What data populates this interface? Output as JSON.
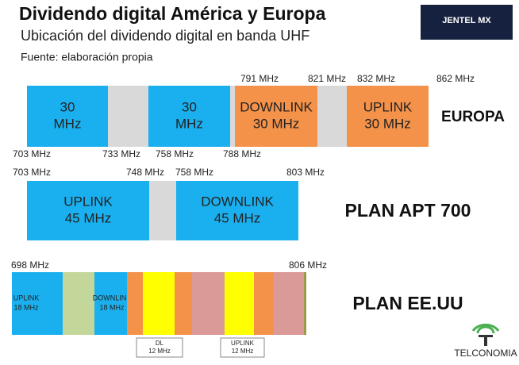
{
  "header": {
    "title": "Dividendo digital América y Europa",
    "subtitle": "Ubicación del dividendo digital en banda UHF",
    "source": "Fuente: elaboración propia"
  },
  "logos": {
    "jentel": "JENTEL MX",
    "telconomia": "TELCONOMIA"
  },
  "europa": {
    "name": "EUROPA",
    "labels": [
      [
        "30",
        "MHz"
      ],
      [
        "30",
        "MHz"
      ],
      [
        "DOWNLINK",
        "30 MHz"
      ],
      [
        "UPLINK",
        "30 MHz"
      ]
    ],
    "top": [
      "791 MHz",
      "821 MHz",
      "832 MHz",
      "862 MHz"
    ],
    "bottom": [
      "703 MHz",
      "733 MHz",
      "758 MHz",
      "788 MHz"
    ]
  },
  "apt": {
    "name": "PLAN APT 700",
    "labels": [
      [
        "UPLINK",
        "45 MHz"
      ],
      [
        "DOWNLINK",
        "45 MHz"
      ]
    ],
    "top": [
      "703 MHz",
      "748 MHz",
      "758 MHz",
      "803 MHz"
    ]
  },
  "eeuu": {
    "name": "PLAN EE.UU",
    "labels": [
      [
        "UPLINK",
        "18 MHz"
      ],
      [
        "DOWNLINK",
        "18 MHz"
      ]
    ],
    "top": [
      "698 MHz",
      "806 MHz"
    ],
    "boxes": [
      [
        "DL",
        "12 MHz"
      ],
      [
        "UPLINK",
        "12 MHz"
      ]
    ]
  }
}
